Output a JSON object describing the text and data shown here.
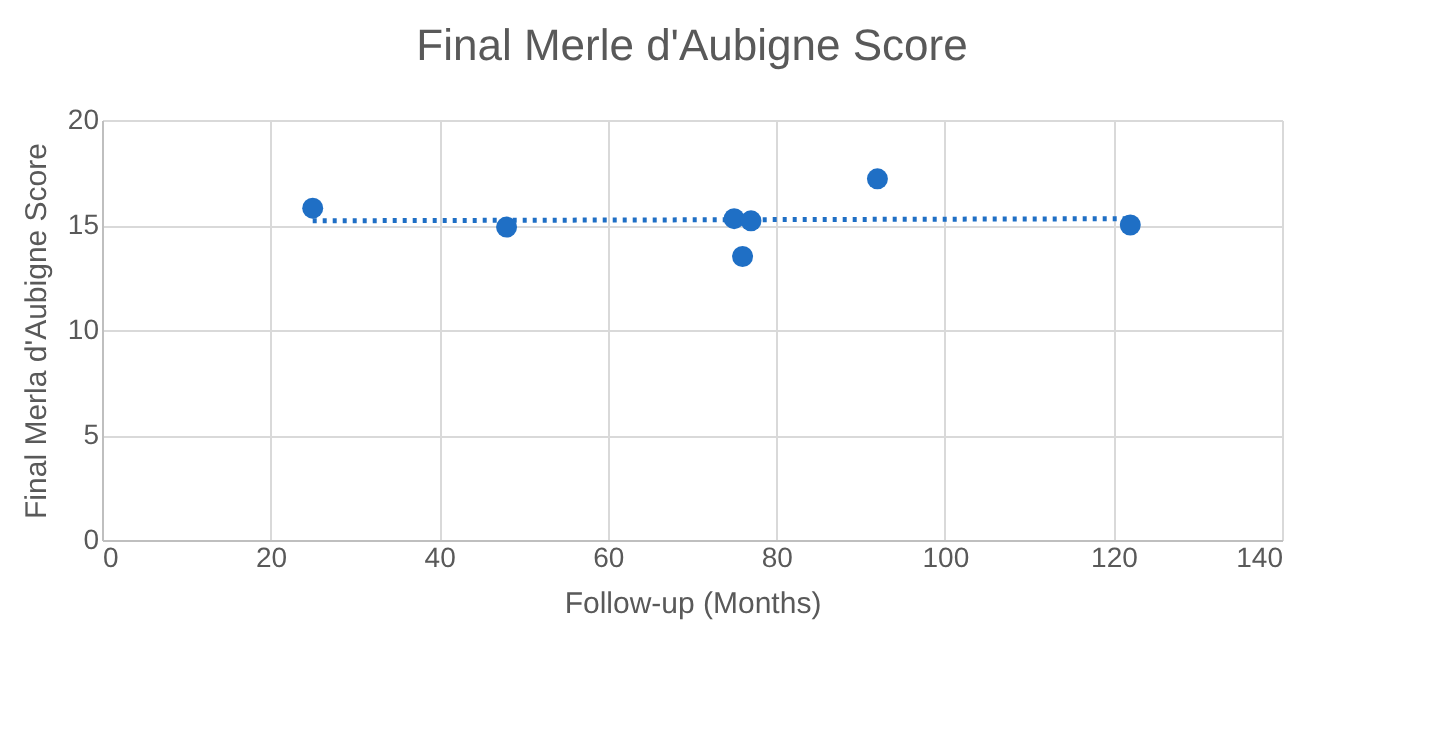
{
  "chart_data": {
    "type": "scatter",
    "title": "Final Merle d'Aubigne Score",
    "xlabel": "Follow-up (Months)",
    "ylabel": "Final Merla d'Aubigne Score",
    "xlim": [
      0,
      140
    ],
    "xticks": [
      0,
      20,
      40,
      60,
      80,
      100,
      120,
      140
    ],
    "ylim": [
      0,
      20
    ],
    "yticks": [
      0,
      5,
      10,
      15,
      20
    ],
    "grid": true,
    "series": [
      {
        "marker": "circle",
        "color": "#1f6fc5",
        "x": [
          25,
          48,
          75,
          76,
          77,
          92,
          122
        ],
        "values": [
          15.8,
          14.9,
          15.3,
          13.5,
          15.2,
          17.2,
          15.0
        ]
      },
      {
        "type": "line",
        "marker": "none",
        "line_style": "dotted",
        "color": "#1f6fc5",
        "x": [
          25,
          122
        ],
        "values": [
          15.2,
          15.3
        ]
      }
    ]
  }
}
